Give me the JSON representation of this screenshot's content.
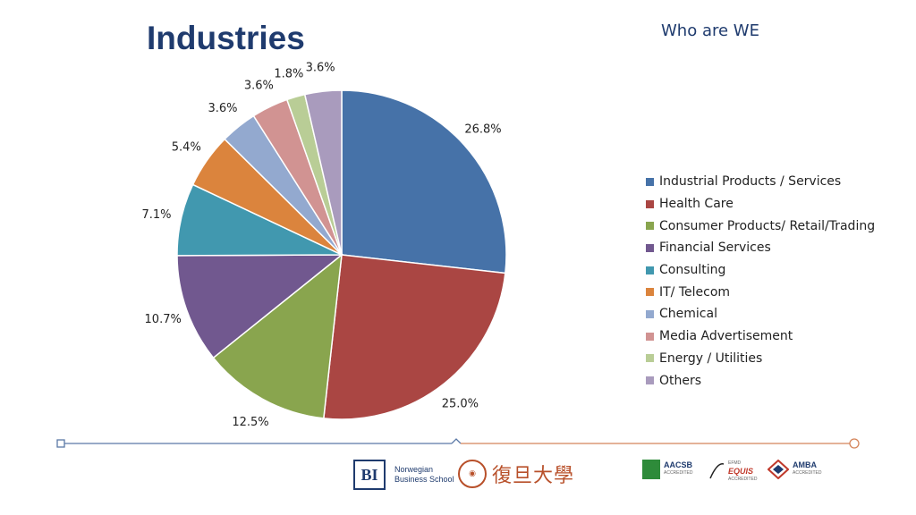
{
  "header": {
    "title": "Industries",
    "subtitle": "Who are WE"
  },
  "chart_data": {
    "type": "pie",
    "title": "Industries",
    "start_angle_deg": 0,
    "direction": "clockwise",
    "labels_shown": [
      "26.8%",
      "25.0%",
      "12.5%",
      "10.7%",
      "7.1%",
      "5.4%",
      "3.6%",
      "3.6%",
      "1.8%",
      "3.6%"
    ],
    "slices": [
      {
        "name": "Industrial Products / Services",
        "value": 26.8,
        "color": "#4672A8"
      },
      {
        "name": "Health Care",
        "value": 25.0,
        "color": "#AA4643"
      },
      {
        "name": "Consumer Products/ Retail/Trading",
        "value": 12.5,
        "color": "#89A54E"
      },
      {
        "name": "Financial Services",
        "value": 10.7,
        "color": "#71588F"
      },
      {
        "name": "Consulting",
        "value": 7.1,
        "color": "#4198AF"
      },
      {
        "name": "IT/ Telecom",
        "value": 5.4,
        "color": "#DB843D"
      },
      {
        "name": "Chemical",
        "value": 3.6,
        "color": "#93A9CF"
      },
      {
        "name": "Media Advertisement",
        "value": 3.6,
        "color": "#D19392"
      },
      {
        "name": "Energy / Utilities",
        "value": 1.8,
        "color": "#B9CD96"
      },
      {
        "name": "Others",
        "value": 3.6,
        "color": "#A99BBD"
      }
    ],
    "legend": "right"
  },
  "logos": {
    "bi_mark": "BI",
    "bi_line1": "Norwegian",
    "bi_line2": "Business School",
    "fudan_name": "復旦大學",
    "aacsb": "AACSB",
    "aacsb_sub": "ACCREDITED",
    "efmd": "EFMD",
    "equis": "EQUIS",
    "equis_sub": "ACCREDITED",
    "amba": "AMBA",
    "amba_sub": "ACCREDITED"
  },
  "colors": {
    "title": "#1F3B6E",
    "footer_left": "#5A78A6",
    "footer_right": "#D4845A"
  }
}
